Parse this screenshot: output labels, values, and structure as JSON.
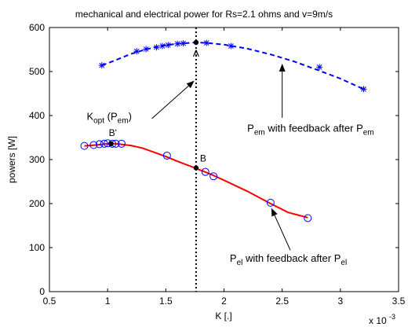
{
  "chart_data": {
    "type": "line",
    "title": "mechanical and electrical power for Rs=2.1 ohms and v=9m/s",
    "xlabel": "K [.]",
    "ylabel": "powers [W]",
    "x_multiplier": "x 10",
    "x_multiplier_exponent": "-3",
    "xlim": [
      0.5,
      3.5
    ],
    "ylim": [
      0,
      600
    ],
    "xticks": [
      0.5,
      1,
      1.5,
      2,
      2.5,
      3,
      3.5
    ],
    "yticks": [
      0,
      100,
      200,
      300,
      400,
      500,
      600
    ],
    "xtick_labels": [
      "0.5",
      "1",
      "1.5",
      "2",
      "2.5",
      "3",
      "3.5"
    ],
    "ytick_labels": [
      "0",
      "100",
      "200",
      "300",
      "400",
      "500",
      "600"
    ],
    "grid": false,
    "series": [
      {
        "id": "pem",
        "color": "#0000ff",
        "line_style": "dashed",
        "marker": "asterisk",
        "curve_x": [
          0.95,
          1.05,
          1.2,
          1.3,
          1.4,
          1.5,
          1.6,
          1.7,
          1.76,
          1.85,
          2.0,
          2.2,
          2.4,
          2.6,
          2.8,
          3.0,
          3.2
        ],
        "curve_y": [
          514,
          524,
          540,
          548,
          555,
          560,
          563,
          565,
          566,
          565,
          561,
          552,
          539,
          523,
          504,
          484,
          460
        ],
        "marker_x": [
          0.95,
          1.25,
          1.33,
          1.42,
          1.47,
          1.52,
          1.6,
          1.65,
          1.85,
          2.06,
          2.82,
          3.2
        ],
        "marker_y": [
          514,
          546,
          551,
          555,
          558,
          560,
          563,
          564,
          565,
          558,
          510,
          460
        ]
      },
      {
        "id": "pel",
        "color": "#ff0000",
        "marker_color": "#0000ff",
        "line_style": "solid",
        "marker": "circle",
        "curve_x": [
          0.8,
          0.9,
          1.0,
          1.05,
          1.1,
          1.2,
          1.3,
          1.5,
          1.6,
          1.76,
          1.9,
          2.0,
          2.2,
          2.4,
          2.55,
          2.72
        ],
        "curve_y": [
          331,
          333,
          336,
          336,
          335,
          332,
          326,
          307,
          296,
          280,
          265,
          253,
          228,
          200,
          180,
          168
        ],
        "marker_x": [
          0.8,
          0.88,
          0.93,
          0.97,
          1.0,
          1.04,
          1.07,
          1.12,
          1.51,
          1.84,
          1.91,
          2.4,
          2.72
        ],
        "marker_y": [
          331,
          333,
          335,
          336,
          337,
          336,
          336,
          336,
          309,
          272,
          262,
          202,
          167
        ]
      }
    ],
    "reference_line": {
      "x": 1.76,
      "style": "dotted",
      "color": "#000000"
    },
    "points": [
      {
        "label": "A",
        "x": 1.76,
        "y": 566
      },
      {
        "label": "B",
        "x": 1.76,
        "y": 281
      },
      {
        "label": "B'",
        "x": 1.03,
        "y": 336
      }
    ],
    "annotations": [
      {
        "id": "kopt",
        "parts": [
          {
            "t": "K",
            "sub": false
          },
          {
            "t": "opt",
            "sub": true
          },
          {
            "t": " (P",
            "sub": false
          },
          {
            "t": "em",
            "sub": true
          },
          {
            "t": ")",
            "sub": false
          }
        ],
        "text_x": 0.82,
        "text_y": 390,
        "arrow_from": [
          1.38,
          393
        ],
        "arrow_to": [
          1.74,
          478
        ]
      },
      {
        "id": "pem_label",
        "parts": [
          {
            "t": "P",
            "sub": false
          },
          {
            "t": "em",
            "sub": true
          },
          {
            "t": " with feedback after P",
            "sub": false
          },
          {
            "t": "em",
            "sub": true
          }
        ],
        "text_x": 2.2,
        "text_y": 363,
        "arrow_from": [
          2.5,
          395
        ],
        "arrow_to": [
          2.5,
          516
        ]
      },
      {
        "id": "pel_label",
        "parts": [
          {
            "t": "P",
            "sub": false
          },
          {
            "t": "el",
            "sub": true
          },
          {
            "t": " with feedback after P",
            "sub": false
          },
          {
            "t": "el",
            "sub": true
          }
        ],
        "text_x": 2.05,
        "text_y": 68,
        "arrow_from": [
          2.57,
          94
        ],
        "arrow_to": [
          2.41,
          188
        ]
      }
    ]
  }
}
